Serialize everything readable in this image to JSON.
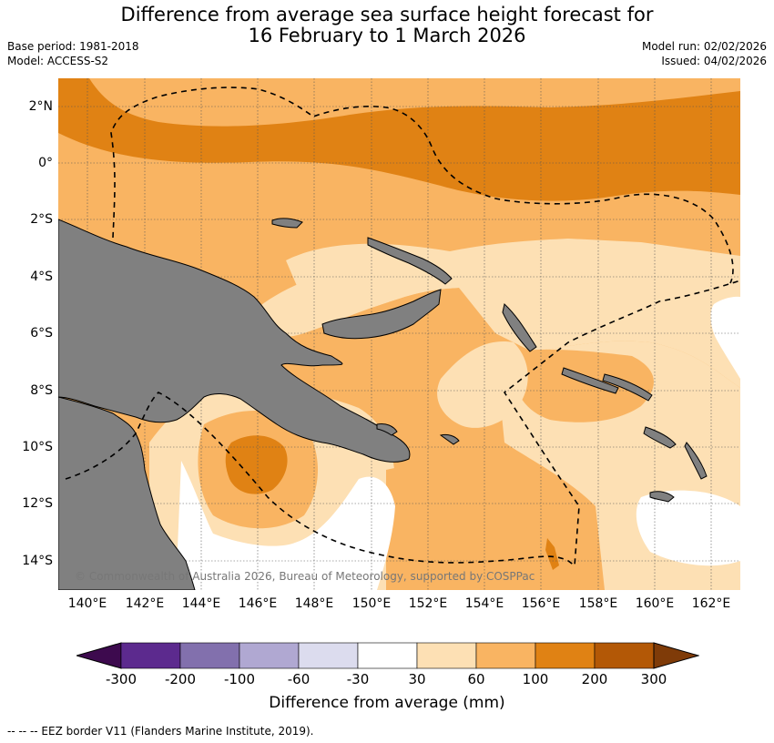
{
  "title": {
    "line1": "Difference from average sea surface height forecast for",
    "line2": "16 February to 1 March 2026"
  },
  "meta": {
    "base_period": "Base period: 1981-2018",
    "model": "Model: ACCESS-S2",
    "model_run": "Model run: 02/02/2026",
    "issued": "Issued: 04/02/2026"
  },
  "axes": {
    "lat_labels": [
      "2°N",
      "0°",
      "2°S",
      "4°S",
      "6°S",
      "8°S",
      "10°S",
      "12°S",
      "14°S"
    ],
    "lon_labels": [
      "140°E",
      "142°E",
      "144°E",
      "146°E",
      "148°E",
      "150°E",
      "152°E",
      "154°E",
      "156°E",
      "158°E",
      "160°E",
      "162°E"
    ]
  },
  "copyright": "© Commonwealth of Australia 2026, Bureau of Meteorology, supported by COSPPac",
  "colorbar": {
    "title": "Difference from average (mm)",
    "tick_labels": [
      "-300",
      "-200",
      "-100",
      "-60",
      "-30",
      "30",
      "60",
      "100",
      "200",
      "300"
    ],
    "colors": [
      "#3d0a4e",
      "#5c2a8e",
      "#8270ad",
      "#b0a8d2",
      "#dcdcee",
      "#ffffff",
      "#fde0b4",
      "#f9b462",
      "#e08214",
      "#b35806",
      "#7f3b08"
    ]
  },
  "legend": "--  --  -- EEZ border V11 (Flanders Marine Institute, 2019)."
}
